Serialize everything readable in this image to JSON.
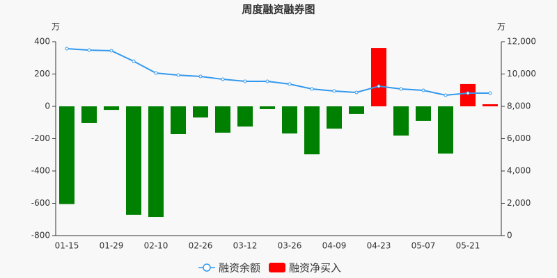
{
  "chart_data": {
    "type": "bar",
    "title": "周度融资融券图",
    "y_unit": "万",
    "y2_unit": "万",
    "categories": [
      "01-15",
      null,
      "01-29",
      null,
      "02-10",
      null,
      "02-26",
      null,
      "03-12",
      null,
      "03-26",
      null,
      "04-09",
      null,
      "04-23",
      null,
      "05-07",
      null,
      "05-21",
      null
    ],
    "series": [
      {
        "name": "融资余额",
        "type": "line",
        "axis": "y2",
        "color": "#3399ee",
        "values": [
          11570,
          11480,
          11440,
          10790,
          10060,
          9930,
          9850,
          9675,
          9550,
          9550,
          9375,
          9075,
          8945,
          8860,
          9245,
          9075,
          8990,
          8690,
          8815,
          8815
        ]
      },
      {
        "name": "融资净买入",
        "type": "bar",
        "axis": "y",
        "color": "#ff0000",
        "negative_color": "#008000",
        "values": [
          -605,
          -103,
          -22,
          -671,
          -684,
          -172,
          -69,
          -163,
          -125,
          -17,
          -168,
          -297,
          -138,
          -47,
          361,
          -181,
          -90,
          -292,
          138,
          13
        ]
      }
    ],
    "ylim": [
      -800,
      400
    ],
    "yticks": [
      -800,
      -600,
      -400,
      -200,
      0,
      200,
      400
    ],
    "y2lim": [
      0,
      12000
    ],
    "y2ticks": [
      0,
      {
        "value": 2000,
        "label": "2,000"
      },
      {
        "value": 4000,
        "label": "4,000"
      },
      {
        "value": 6000,
        "label": "6,000"
      },
      {
        "value": 8000,
        "label": "8,000"
      },
      {
        "value": 10000,
        "label": "10,000"
      },
      {
        "value": 12000,
        "label": "12,000"
      }
    ],
    "grid": false
  }
}
